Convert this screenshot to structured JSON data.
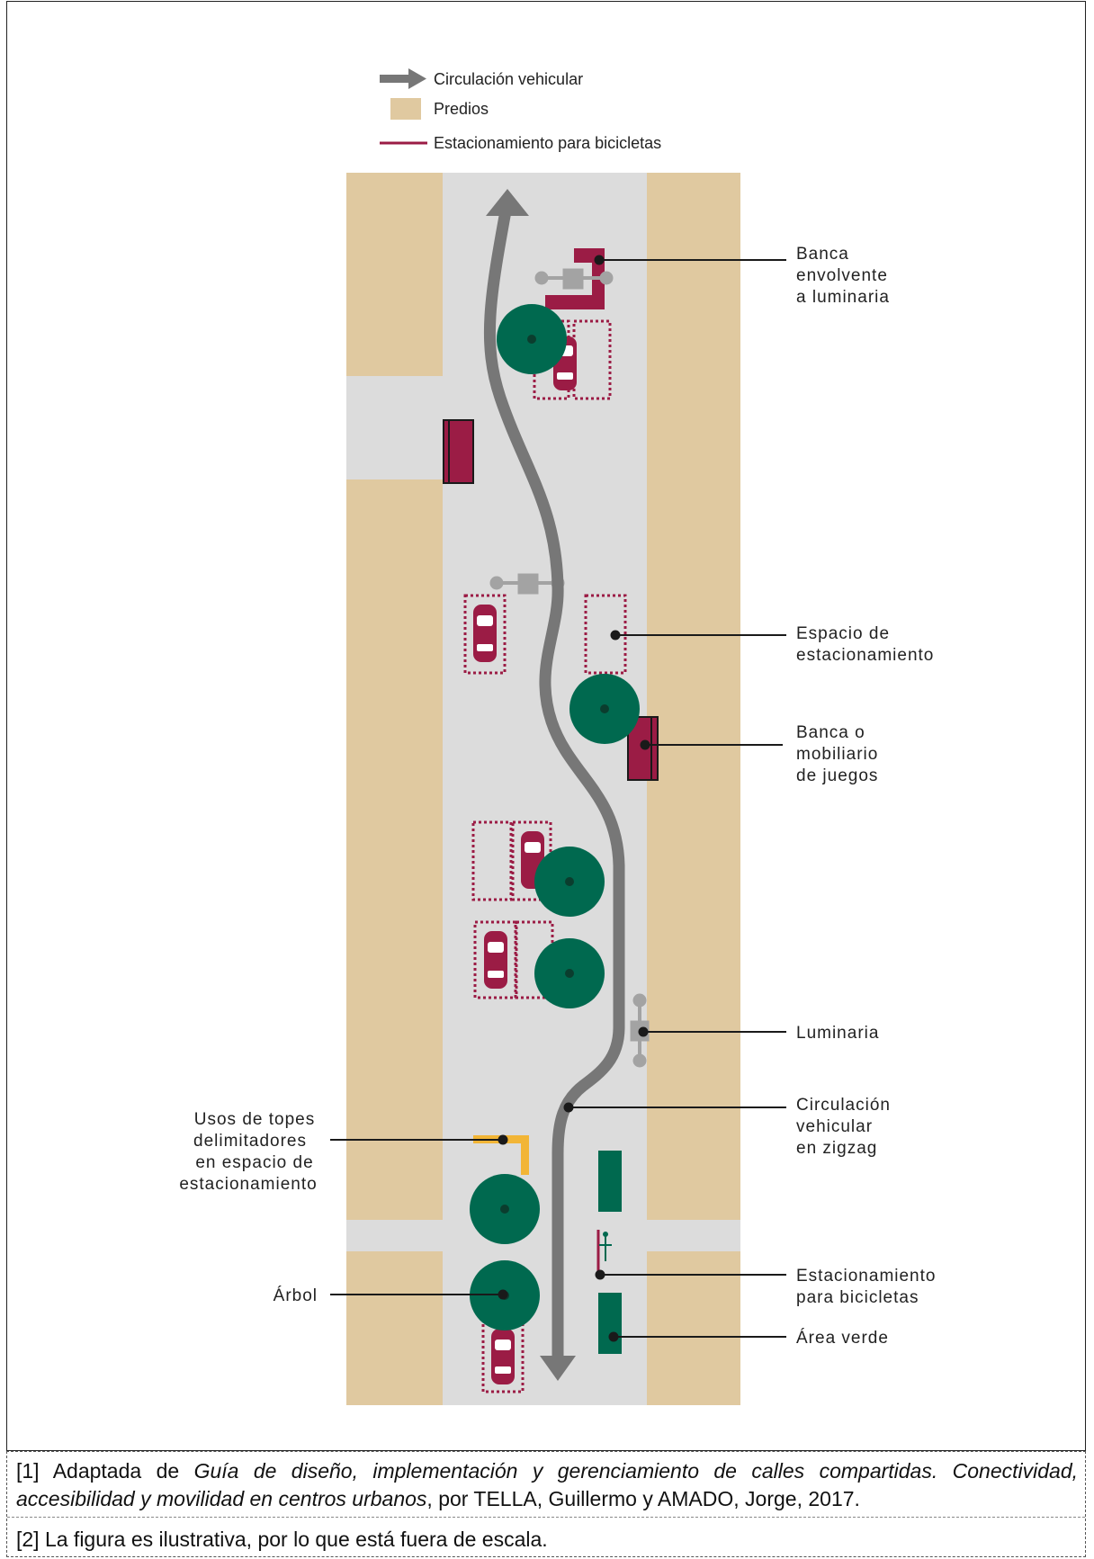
{
  "legend": {
    "vehicle_flow": "Circulación vehicular",
    "lots": "Predios",
    "bike_parking": "Estacionamiento para bicicletas"
  },
  "labels": {
    "banca_envolvente": [
      "Banca",
      "envolvente",
      "a luminaria"
    ],
    "espacio_estacionamiento": [
      "Espacio de",
      "estacionamiento"
    ],
    "banca_juegos": [
      "Banca o",
      "mobiliario",
      "de juegos"
    ],
    "luminaria": [
      "Luminaria"
    ],
    "circulacion_zigzag": [
      "Circulación",
      "vehicular",
      "en zigzag"
    ],
    "estacionamiento_bicicletas": [
      "Estacionamiento",
      "para bicicletas"
    ],
    "area_verde": [
      "Área verde"
    ],
    "usos_topes": [
      "Usos de topes",
      "delimitadores",
      "en espacio de",
      "estacionamiento"
    ],
    "arbol": [
      "Árbol"
    ]
  },
  "notes": {
    "n1_prefix": "[1] Adaptada de ",
    "n1_title": "Guía de diseño, implementación y gerenciamiento de calles compartidas. Conectividad, accesibilidad y movilidad en centros urbanos",
    "n1_suffix": ", por TELLA, Guillermo y AMADO, Jorge, 2017.",
    "n2": "[2] La figura es ilustrativa, por lo que está fuera de escala."
  },
  "colors": {
    "lots": "#e0c9a0",
    "street": "#dcdcdc",
    "tree": "#00694f",
    "maroon": "#9b1c45",
    "arrow": "#777777",
    "lamp": "#a3a3a3",
    "stopper": "#f2b536"
  }
}
